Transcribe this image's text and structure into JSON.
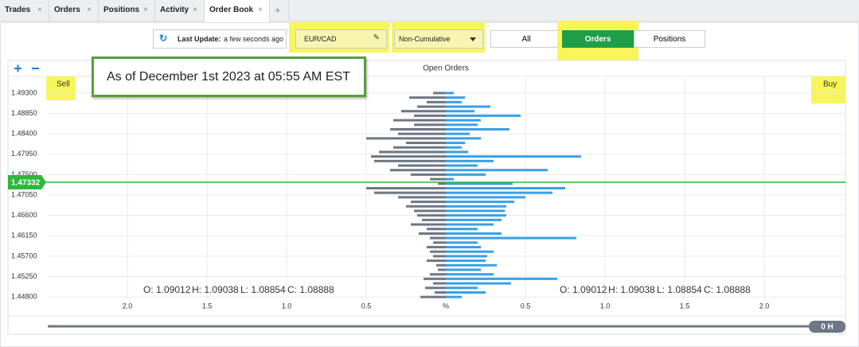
{
  "tabs": [
    "Trades",
    "Orders",
    "Positions",
    "Activity",
    "Order Book"
  ],
  "toolbar": {
    "last_update_label": "Last Update:",
    "last_update_value": "a few seconds ago",
    "instrument": "EUR/CAD",
    "mode": "Non-Cumulative",
    "filters": [
      "All",
      "Orders",
      "Positions"
    ]
  },
  "annotation": "As of December 1st 2023 at 05:55 AM EST",
  "chart_data": {
    "type": "order-book",
    "title": "Open Orders",
    "x": [
      1.493,
      1.492,
      1.491,
      1.49,
      1.489,
      1.488,
      1.487,
      1.486,
      1.485,
      1.484,
      1.483,
      1.482,
      1.481,
      1.48,
      1.479,
      1.478,
      1.477,
      1.476,
      1.475,
      1.474,
      1.473,
      1.472,
      1.471,
      1.47,
      1.469,
      1.468,
      1.467,
      1.466,
      1.465,
      1.464,
      1.463,
      1.462,
      1.461,
      1.46,
      1.459,
      1.458,
      1.457,
      1.456,
      1.455,
      1.454,
      1.453,
      1.452,
      1.451,
      1.45,
      1.449,
      1.448
    ],
    "series": [
      {
        "name": "Sell",
        "color": "#6e7783",
        "values": [
          0.08,
          0.23,
          0.12,
          0.18,
          0.28,
          0.2,
          0.33,
          0.2,
          0.35,
          0.3,
          0.5,
          0.25,
          0.33,
          0.42,
          0.47,
          0.45,
          0.3,
          0.35,
          0.22,
          0.1,
          0.05,
          0.5,
          0.45,
          0.3,
          0.22,
          0.25,
          0.2,
          0.18,
          0.15,
          0.22,
          0.12,
          0.17,
          0.1,
          0.08,
          0.12,
          0.1,
          0.08,
          0.12,
          0.06,
          0.05,
          0.1,
          0.14,
          0.08,
          0.13,
          0.07,
          0.16
        ]
      },
      {
        "name": "Buy",
        "color": "#3aa0e6",
        "values": [
          0.05,
          0.12,
          0.1,
          0.28,
          0.18,
          0.47,
          0.22,
          0.2,
          0.4,
          0.15,
          0.22,
          0.12,
          0.1,
          0.14,
          0.85,
          0.3,
          0.2,
          0.64,
          0.25,
          0.05,
          0.42,
          0.75,
          0.67,
          0.5,
          0.43,
          0.38,
          0.37,
          0.38,
          0.35,
          0.3,
          0.2,
          0.35,
          0.82,
          0.2,
          0.22,
          0.3,
          0.26,
          0.25,
          0.32,
          0.22,
          0.3,
          0.7,
          0.41,
          0.2,
          0.25,
          0.1
        ]
      }
    ],
    "xlim": [
      0,
      2.5
    ],
    "xticks": [
      {
        "value": 0,
        "label": "%"
      },
      0.5,
      {
        "value": 1,
        "label": "1.0"
      },
      1.5,
      {
        "value": 2,
        "label": "2.0"
      }
    ],
    "ylim": [
      1.4475,
      1.4965
    ],
    "yticks": [
      {
        "value": 1.493,
        "label": "1.49300"
      },
      {
        "value": 1.4885,
        "label": "1.48850"
      },
      {
        "value": 1.484,
        "label": "1.48400"
      },
      {
        "value": 1.4795,
        "label": "1.47950"
      },
      {
        "value": 1.475,
        "label": "1.47500"
      },
      {
        "value": 1.4705,
        "label": "1.47050"
      },
      {
        "value": 1.466,
        "label": "1.46600"
      },
      {
        "value": 1.4615,
        "label": "1.46150"
      },
      {
        "value": 1.457,
        "label": "1.45700"
      },
      {
        "value": 1.4525,
        "label": "1.45250"
      },
      {
        "value": 1.448,
        "label": "1.44800"
      }
    ],
    "grid": true,
    "current_price": 1.47332,
    "current_price_color": "#2db83d",
    "ohlc": [
      "O: 1.09012",
      "H: 1.09038",
      "L: 1.08854",
      "C: 1.08888"
    ]
  },
  "slider_label": "0 H"
}
